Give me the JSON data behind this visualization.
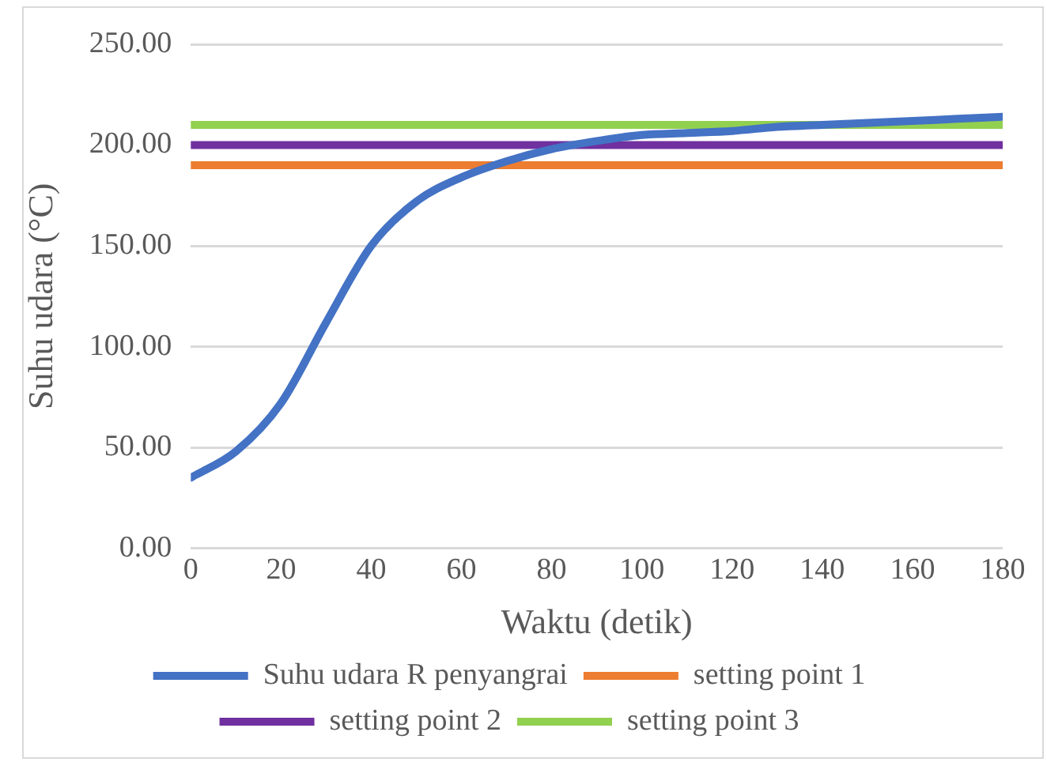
{
  "chart_data": {
    "type": "line",
    "xlabel": "Waktu (detik)",
    "ylabel": "Suhu udara (°C)",
    "xlim": [
      0,
      180
    ],
    "xticks": [
      0,
      20,
      40,
      60,
      80,
      100,
      120,
      140,
      160,
      180
    ],
    "ylim": [
      0,
      250
    ],
    "yticks": [
      {
        "value": 0,
        "label": "0.00"
      },
      {
        "value": 50,
        "label": "50.00"
      },
      {
        "value": 100,
        "label": "100.00"
      },
      {
        "value": 150,
        "label": "150.00"
      },
      {
        "value": 200,
        "label": "200.00"
      },
      {
        "value": 250,
        "label": "250.00"
      }
    ],
    "grid": "y",
    "legend": "bottom",
    "marker": "none",
    "line_style": "solid",
    "series": [
      {
        "name": "Suhu udara R penyangrai",
        "color": "#4472c4",
        "x": [
          0,
          10,
          20,
          30,
          40,
          50,
          60,
          70,
          80,
          90,
          100,
          110,
          120,
          130,
          140,
          150,
          160,
          170,
          180
        ],
        "values": [
          35,
          48,
          72,
          112,
          150,
          172,
          184,
          192,
          198,
          202,
          205,
          206,
          207,
          209,
          210,
          211,
          212,
          213,
          214
        ]
      },
      {
        "name": "setting point 1",
        "color": "#ed7d31",
        "x": [
          0,
          180
        ],
        "values": [
          190,
          190
        ]
      },
      {
        "name": "setting point 2",
        "color": "#7030a0",
        "x": [
          0,
          180
        ],
        "values": [
          200,
          200
        ]
      },
      {
        "name": "setting point 3",
        "color": "#92d050",
        "x": [
          0,
          180
        ],
        "values": [
          210,
          210
        ]
      }
    ]
  }
}
